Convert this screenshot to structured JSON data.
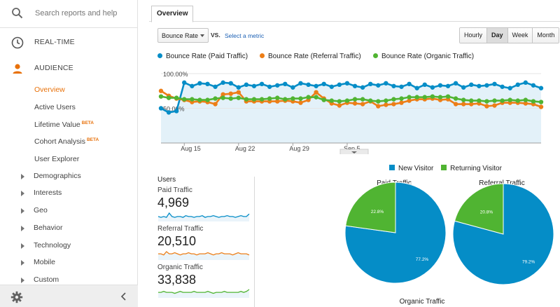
{
  "sidebar": {
    "search_placeholder": "Search reports and help",
    "realtime": "REAL-TIME",
    "audience": "AUDIENCE",
    "audience_items": [
      {
        "label": "Overview",
        "beta": ""
      },
      {
        "label": "Active Users",
        "beta": ""
      },
      {
        "label": "Lifetime Value",
        "beta": "BETA"
      },
      {
        "label": "Cohort Analysis",
        "beta": "BETA"
      },
      {
        "label": "User Explorer",
        "beta": ""
      }
    ],
    "groups": [
      "Demographics",
      "Interests",
      "Geo",
      "Behavior",
      "Technology",
      "Mobile",
      "Custom"
    ]
  },
  "tabs": {
    "overview": "Overview"
  },
  "controls": {
    "metric": "Bounce Rate",
    "vs": "VS.",
    "select_metric": "Select a metric",
    "periods": [
      "Hourly",
      "Day",
      "Week",
      "Month"
    ],
    "selected_period": "Day"
  },
  "chart_data": {
    "type": "line",
    "title": "",
    "series": [
      {
        "name": "Bounce Rate (Paid Traffic)",
        "color": "#058dc7",
        "values": [
          50,
          44,
          46,
          87,
          82,
          86,
          85,
          81,
          87,
          86,
          80,
          84,
          82,
          85,
          81,
          83,
          85,
          80,
          86,
          84,
          82,
          85,
          81,
          84,
          86,
          82,
          80,
          85,
          83,
          86,
          82,
          81,
          85,
          79,
          84,
          80,
          83,
          82,
          86,
          80,
          84,
          82,
          83,
          85,
          81,
          79,
          84,
          87,
          83,
          79
        ]
      },
      {
        "name": "Bounce Rate (Referral Traffic)",
        "color": "#ed7e17",
        "values": [
          75,
          68,
          64,
          62,
          59,
          60,
          59,
          56,
          70,
          71,
          73,
          60,
          60,
          60,
          60,
          60,
          61,
          60,
          58,
          62,
          73,
          64,
          57,
          54,
          58,
          57,
          56,
          60,
          53,
          55,
          56,
          58,
          61,
          63,
          63,
          64,
          62,
          63,
          56,
          56,
          56,
          57,
          53,
          54,
          58,
          58,
          58,
          57,
          56,
          52
        ]
      },
      {
        "name": "Bounce Rate (Organic Traffic)",
        "color": "#50b432",
        "values": [
          67,
          65,
          65,
          63,
          63,
          62,
          62,
          64,
          65,
          64,
          65,
          63,
          63,
          63,
          64,
          65,
          63,
          64,
          64,
          66,
          66,
          62,
          61,
          60,
          61,
          63,
          63,
          61,
          60,
          61,
          63,
          64,
          66,
          66,
          66,
          67,
          66,
          67,
          64,
          62,
          61,
          61,
          60,
          61,
          61,
          62,
          61,
          62,
          60,
          59
        ]
      }
    ],
    "y_labels": [
      "100.00%",
      "50.00%"
    ],
    "ylim": [
      0,
      105
    ],
    "x_labels": [
      "Aug 15",
      "Aug 22",
      "Aug 29",
      "Sep 5"
    ],
    "x_label_index": [
      3,
      10,
      17,
      24
    ]
  },
  "users": {
    "title": "Users",
    "segments": [
      {
        "label": "Paid Traffic",
        "value": "4,969",
        "color": "#058dc7",
        "spark": [
          5,
          4,
          5,
          4,
          9,
          5,
          4,
          5,
          5,
          4,
          6,
          5,
          5,
          4,
          5,
          5,
          6,
          4,
          5,
          5,
          6,
          5,
          4,
          5,
          5,
          6,
          5,
          5,
          4,
          5,
          6,
          5,
          5,
          8
        ]
      },
      {
        "label": "Referral Traffic",
        "value": "20,510",
        "color": "#ed7e17",
        "spark": [
          5,
          5,
          4,
          7,
          5,
          5,
          6,
          5,
          4,
          5,
          5,
          6,
          5,
          5,
          4,
          5,
          5,
          5,
          6,
          5,
          4,
          5,
          5,
          6,
          5,
          5,
          5,
          4,
          5,
          6,
          5,
          5,
          5,
          4
        ]
      },
      {
        "label": "Organic Traffic",
        "value": "33,838",
        "color": "#50b432",
        "spark": [
          5,
          5,
          6,
          5,
          5,
          5,
          4,
          5,
          6,
          5,
          5,
          5,
          5,
          6,
          5,
          5,
          5,
          5,
          6,
          5,
          4,
          5,
          5,
          5,
          6,
          5,
          5,
          5,
          5,
          5,
          6,
          5,
          6,
          8
        ]
      }
    ]
  },
  "pies": {
    "legend": [
      {
        "name": "New Visitor",
        "color": "#058dc7"
      },
      {
        "name": "Returning Visitor",
        "color": "#50b432"
      }
    ],
    "charts": [
      {
        "title": "Paid Traffic",
        "new_pct": 77.2,
        "returning_pct": 22.8,
        "new_label": "77.2%",
        "returning_label": "22.8%"
      },
      {
        "title": "Referral Traffic",
        "new_pct": 79.2,
        "returning_pct": 20.8,
        "new_label": "79.2%",
        "returning_label": "20.8%"
      }
    ],
    "third_title": "Organic Traffic"
  }
}
